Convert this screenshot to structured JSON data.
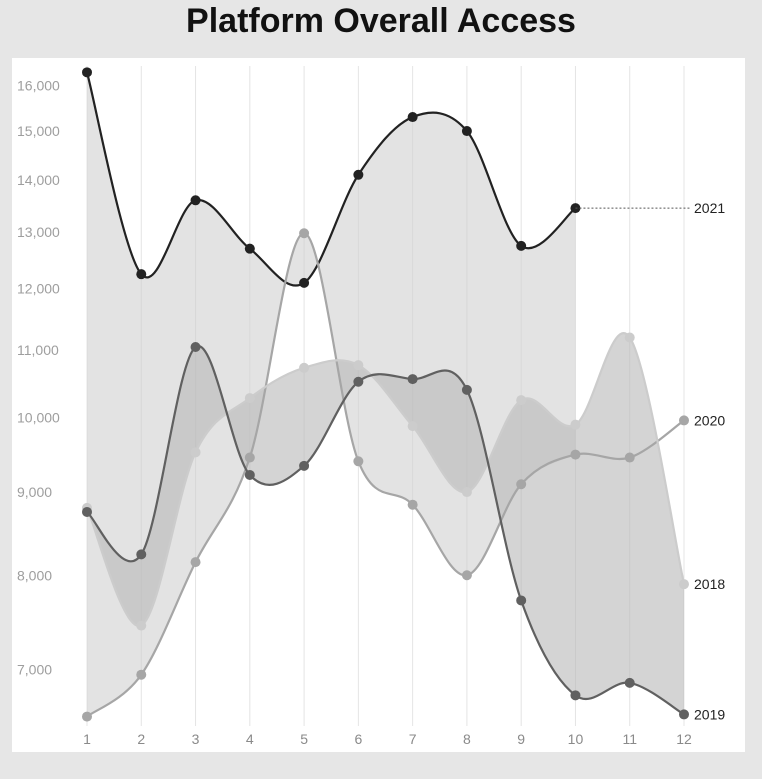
{
  "chart_data": {
    "type": "line",
    "title": "Platform Overall Access",
    "xlabel": "",
    "ylabel": "",
    "scale": "log",
    "ylim": [
      6500,
      16400
    ],
    "x": [
      1,
      2,
      3,
      4,
      5,
      6,
      7,
      8,
      9,
      10,
      11,
      12
    ],
    "yticks": [
      7000,
      8000,
      9000,
      10000,
      11000,
      12000,
      13000,
      14000,
      15000,
      16000
    ],
    "ytick_labels": [
      "7,000",
      "8,000",
      "9,000",
      "10,000",
      "11,000",
      "12,000",
      "13,000",
      "14,000",
      "15,000",
      "16,000"
    ],
    "grid": "vertical",
    "legend": "end-of-line labels",
    "series": [
      {
        "name": "2021",
        "color": "#222222",
        "values": [
          16300,
          12250,
          13600,
          12700,
          12100,
          14100,
          15300,
          15000,
          12750,
          13450,
          null,
          null
        ]
      },
      {
        "name": "2020",
        "color": "#a6a6a6",
        "values": [
          6550,
          6950,
          8150,
          9450,
          12980,
          9400,
          8840,
          8000,
          9100,
          9490,
          9450,
          9960
        ]
      },
      {
        "name": "2018",
        "color": "#cccccc",
        "values": [
          8800,
          7450,
          9520,
          10280,
          10730,
          10770,
          9880,
          9000,
          10250,
          9900,
          11200,
          7900
        ]
      },
      {
        "name": "2019",
        "color": "#606060",
        "values": [
          8750,
          8240,
          11050,
          9220,
          9340,
          10520,
          10560,
          10400,
          7720,
          6750,
          6870,
          6570
        ]
      }
    ]
  }
}
